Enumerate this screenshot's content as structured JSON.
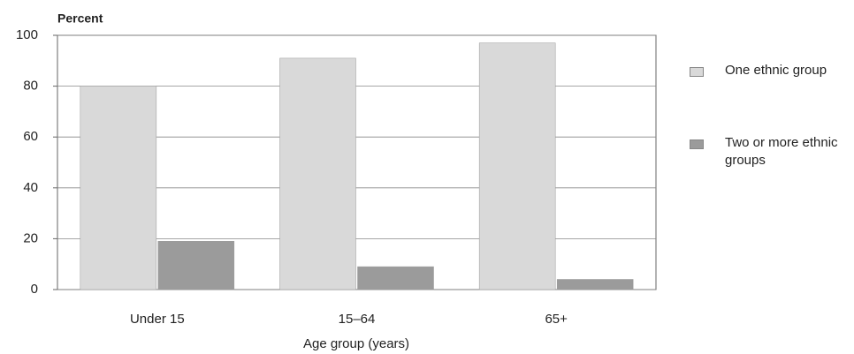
{
  "chart_data": {
    "type": "bar",
    "y_axis_label": "Percent",
    "x_axis_label": "Age group (years)",
    "categories": [
      "Under 15",
      "15–64",
      "65+"
    ],
    "series": [
      {
        "name": "One ethnic group",
        "color": "#d9d9d9",
        "values": [
          80,
          91,
          97
        ]
      },
      {
        "name": "Two or more ethnic groups",
        "color": "#9b9b9b",
        "values": [
          19,
          9,
          4
        ]
      }
    ],
    "ylim": [
      0,
      100
    ],
    "yticks": [
      0,
      20,
      40,
      60,
      80,
      100
    ],
    "grid": true,
    "legend": "right"
  }
}
